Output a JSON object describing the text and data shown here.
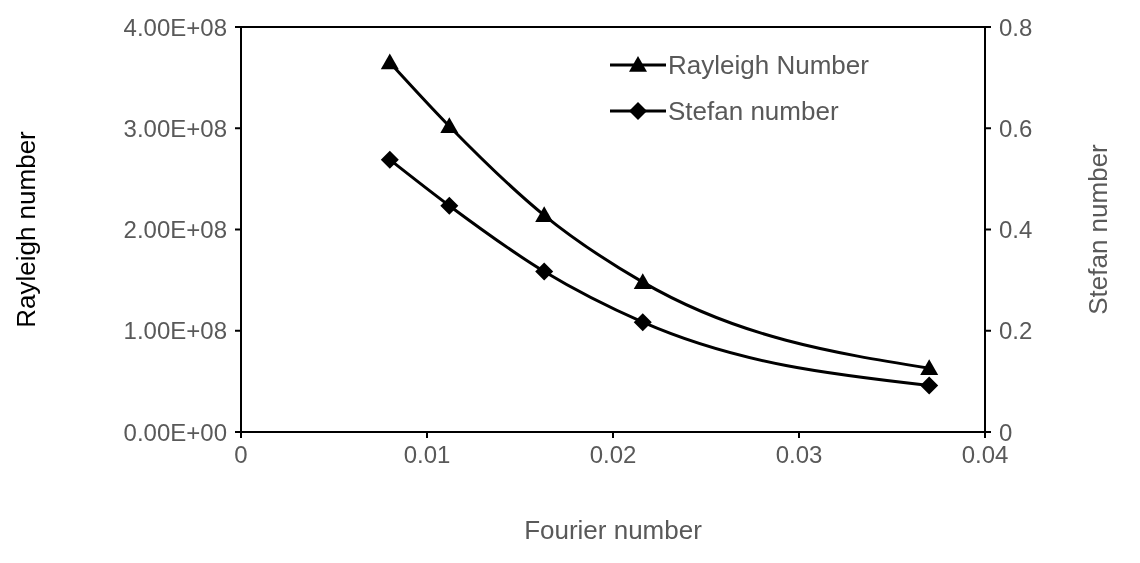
{
  "chart_data": {
    "type": "line",
    "xlabel": "Fourier number",
    "ylabel": "Rayleigh number",
    "y2label": "Stefan number",
    "x": [
      0.008,
      0.0112,
      0.0163,
      0.0216,
      0.037
    ],
    "series": [
      {
        "name": "Rayleigh Number",
        "color": "#000000",
        "marker": "triangle",
        "values": [
          365000000.0,
          302000000.0,
          214000000.0,
          148000000.0,
          63000000.0
        ]
      },
      {
        "name": "Stefan number",
        "color": "#000000",
        "marker": "diamond",
        "axis": "y2",
        "values": [
          0.538,
          0.447,
          0.317,
          0.217,
          0.092
        ]
      }
    ],
    "xlim": [
      0,
      0.04
    ],
    "xticks": [
      0,
      0.01,
      0.02,
      0.03,
      0.04
    ],
    "ylim": [
      0,
      400000000.0
    ],
    "yticks": [
      {
        "value": 0,
        "label": "0.00E+00"
      },
      {
        "value": 100000000.0,
        "label": "1.00E+08"
      },
      {
        "value": 200000000.0,
        "label": "2.00E+08"
      },
      {
        "value": 300000000.0,
        "label": "3.00E+08"
      },
      {
        "value": 400000000.0,
        "label": "4.00E+08"
      }
    ],
    "y2lim": [
      0,
      0.8
    ],
    "y2ticks": [
      0,
      0.2,
      0.4,
      0.6,
      0.8
    ],
    "legend": "top right",
    "grid": false,
    "line_style": "solid"
  }
}
